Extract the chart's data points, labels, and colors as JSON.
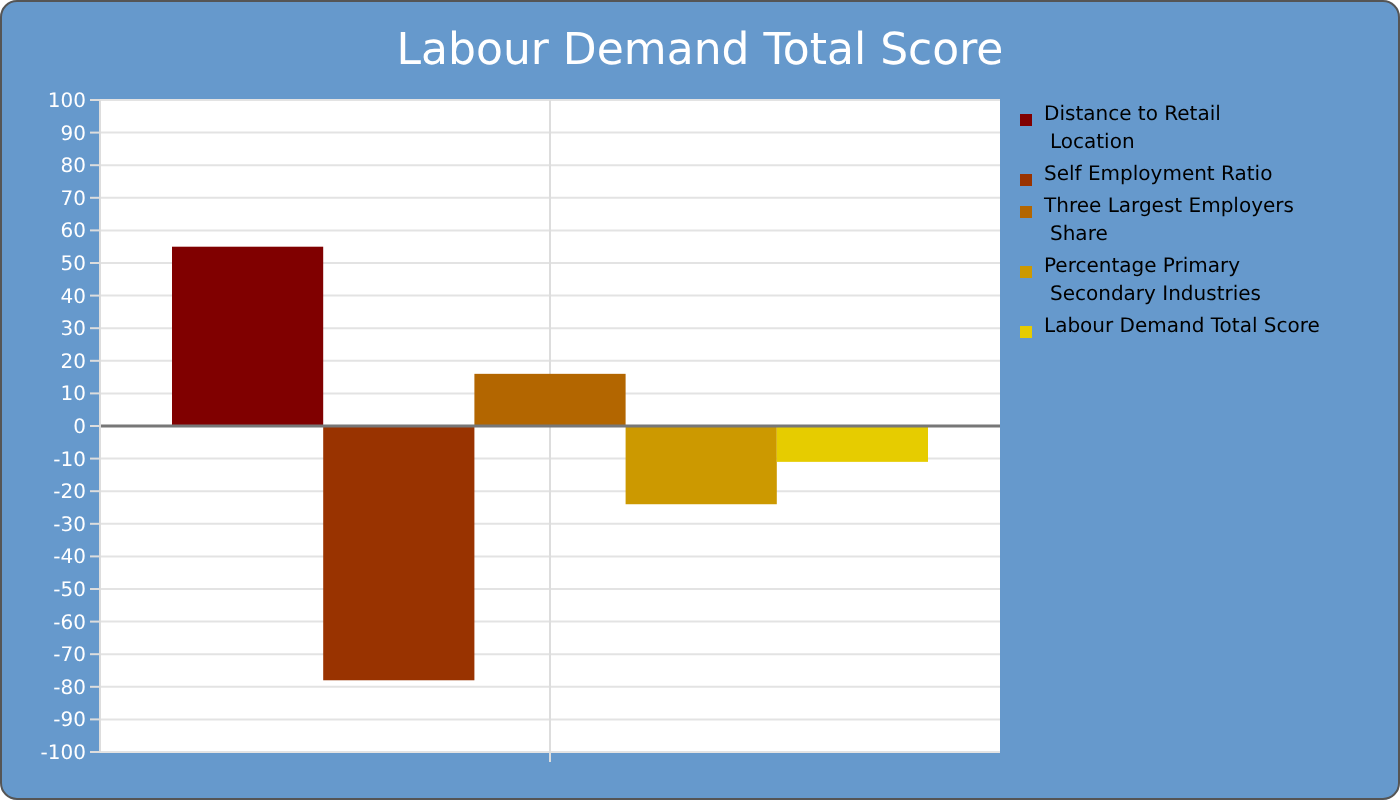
{
  "chart_data": {
    "type": "bar",
    "title": "Labour Demand Total Score",
    "categories": [
      null
    ],
    "series": [
      {
        "name": "Distance to Retail Location",
        "color": "#800000",
        "values": [
          55
        ]
      },
      {
        "name": "Self Employment Ratio",
        "color": "#993300",
        "values": [
          -78
        ]
      },
      {
        "name": "Three Largest Employers Share",
        "color": "#b36600",
        "values": [
          16
        ]
      },
      {
        "name": "Percentage Primary Secondary Industries",
        "color": "#cc9900",
        "values": [
          -24
        ]
      },
      {
        "name": "Labour Demand Total Score",
        "color": "#e6cc00",
        "values": [
          -11
        ]
      }
    ],
    "ylim": [
      -100,
      100
    ],
    "yticks": [
      -100,
      -90,
      -80,
      -70,
      -60,
      -50,
      -40,
      -30,
      -20,
      -10,
      0,
      10,
      20,
      30,
      40,
      50,
      60,
      70,
      80,
      90,
      100
    ],
    "grid": true,
    "legend": "right"
  }
}
